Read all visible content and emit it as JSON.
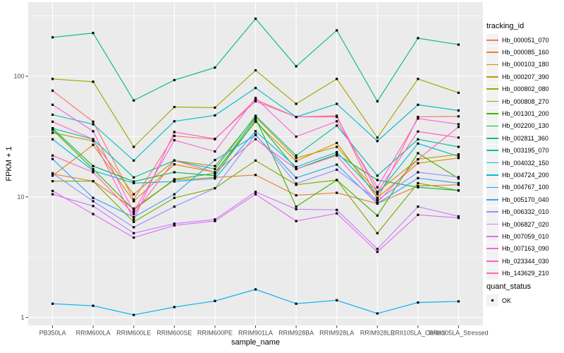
{
  "figure": {
    "panel_bg": "#EBEBEB",
    "grid_color": "#FFFFFF",
    "tick_color": "#333333",
    "tick_label_color": "#4D4D4D",
    "marker_color": "#000000"
  },
  "axes": {
    "x_title": "sample_name",
    "y_title": "FPKM + 1",
    "y_tick_labels": [
      "1",
      "10",
      "100"
    ],
    "y_tick_values": [
      1,
      10,
      100
    ]
  },
  "legend": {
    "tracking_title": "tracking_id",
    "quant_title": "quant_status",
    "quant_items": [
      {
        "label": "OK"
      }
    ],
    "key_bg": "#F2F2F2"
  },
  "chart_data": {
    "type": "line",
    "title": "",
    "xlabel": "sample_name",
    "ylabel": "FPKM + 1",
    "y_scale": "log10",
    "ylim_shown": [
      1,
      390
    ],
    "grid": true,
    "legend_position": "right",
    "marker": "filled-black-square (quant_status = OK)",
    "categories": [
      "PB350LA",
      "RRIM600LA",
      "RRIM600LE",
      "RRIM600SE",
      "RRIM600PE",
      "RRIM901LA",
      "RRIM928BA",
      "RRIM928LA",
      "RRIM928LE",
      "RRII105LA_Control",
      "RRII105LA_Stressed"
    ],
    "series": [
      {
        "name": "Hb_000051_070",
        "color": "#F8766D",
        "values": [
          76,
          42,
          9.5,
          32,
          30,
          64,
          46,
          47,
          9.5,
          46,
          46.5
        ]
      },
      {
        "name": "Hb_000085_160",
        "color": "#EA8331",
        "values": [
          15.5,
          13.5,
          8.0,
          13.8,
          14.5,
          15.2,
          10.3,
          10.8,
          8.8,
          12.3,
          12.6
        ]
      },
      {
        "name": "Hb_000103_180",
        "color": "#D89000",
        "values": [
          15,
          27,
          9.2,
          18.6,
          16,
          42,
          19.8,
          28,
          9.8,
          19,
          21
        ]
      },
      {
        "name": "Hb_000207_390",
        "color": "#C09B00",
        "values": [
          34,
          29,
          10.5,
          20,
          18,
          46,
          21,
          26,
          11,
          20.5,
          22.5
        ]
      },
      {
        "name": "Hb_000802_080",
        "color": "#A3A500",
        "values": [
          95,
          90,
          26,
          55.6,
          55,
          112,
          59,
          95,
          31,
          95,
          73
        ]
      },
      {
        "name": "Hb_000808_270",
        "color": "#7CAE00",
        "values": [
          13.5,
          13.5,
          6.2,
          9.8,
          11.8,
          20,
          12.6,
          13.8,
          5.0,
          13,
          11.3
        ]
      },
      {
        "name": "Hb_001301_200",
        "color": "#39B600",
        "values": [
          36,
          17,
          7.8,
          14,
          15.7,
          45,
          8.3,
          13.8,
          7.0,
          23,
          14.2
        ]
      },
      {
        "name": "Hb_002200_130",
        "color": "#00BB4E",
        "values": [
          37,
          18,
          13.4,
          16,
          15,
          43,
          17,
          22.6,
          13.8,
          12,
          11.3
        ]
      },
      {
        "name": "Hb_002811_360",
        "color": "#00BF7D",
        "values": [
          210,
          228,
          63,
          93,
          118,
          300,
          121,
          240,
          62,
          207,
          183
        ]
      },
      {
        "name": "Hb_003195_070",
        "color": "#00C1A3",
        "values": [
          37,
          30,
          14.5,
          20,
          17,
          47,
          22,
          39,
          15,
          30,
          26
        ]
      },
      {
        "name": "Hb_004032_150",
        "color": "#00BFC4",
        "values": [
          48,
          40,
          20,
          42.3,
          47.4,
          80,
          46,
          59,
          29,
          58,
          52
        ]
      },
      {
        "name": "Hb_004724_200",
        "color": "#00BBDA",
        "values": [
          30,
          16.5,
          13,
          13.4,
          14.2,
          35,
          17.7,
          23.5,
          10.5,
          27.7,
          21.7
        ]
      },
      {
        "name": "Hb_004767_100",
        "color": "#00B0F6",
        "values": [
          1.3,
          1.25,
          1.05,
          1.22,
          1.37,
          1.71,
          1.3,
          1.39,
          1.08,
          1.33,
          1.36
        ]
      },
      {
        "name": "Hb_005170_040",
        "color": "#35A2FF",
        "values": [
          20.6,
          9.8,
          6.8,
          10.5,
          20.2,
          32.5,
          14.4,
          18.5,
          8.8,
          14.3,
          13
        ]
      },
      {
        "name": "Hb_006332_010",
        "color": "#9590FF",
        "values": [
          15.7,
          9.2,
          5.6,
          8.3,
          11.8,
          33,
          12.9,
          16.8,
          9.4,
          16,
          14.6
        ]
      },
      {
        "name": "Hb_006827_020",
        "color": "#C77CFF",
        "values": [
          10.5,
          8.4,
          5.0,
          6.0,
          6.5,
          11,
          7.9,
          7.8,
          3.7,
          8.3,
          6.9
        ]
      },
      {
        "name": "Hb_007059_010",
        "color": "#E76BF3",
        "values": [
          11.2,
          7.2,
          4.6,
          5.8,
          6.3,
          10.5,
          6.3,
          7.3,
          3.5,
          7.1,
          6.7
        ]
      },
      {
        "name": "Hb_007163_090",
        "color": "#FA62DB",
        "values": [
          58,
          35,
          7.5,
          29.5,
          23.8,
          66,
          31.6,
          42.3,
          12,
          44.6,
          40
        ]
      },
      {
        "name": "Hb_023344_030",
        "color": "#FF61CC",
        "values": [
          42,
          30,
          6.5,
          34.5,
          30.3,
          62,
          46,
          46,
          11,
          34.8,
          31
        ]
      },
      {
        "name": "Hb_143629_210",
        "color": "#FF67B2",
        "values": [
          22,
          16,
          7.2,
          20,
          16,
          30,
          17,
          22,
          9,
          20.5,
          38
        ]
      }
    ]
  }
}
